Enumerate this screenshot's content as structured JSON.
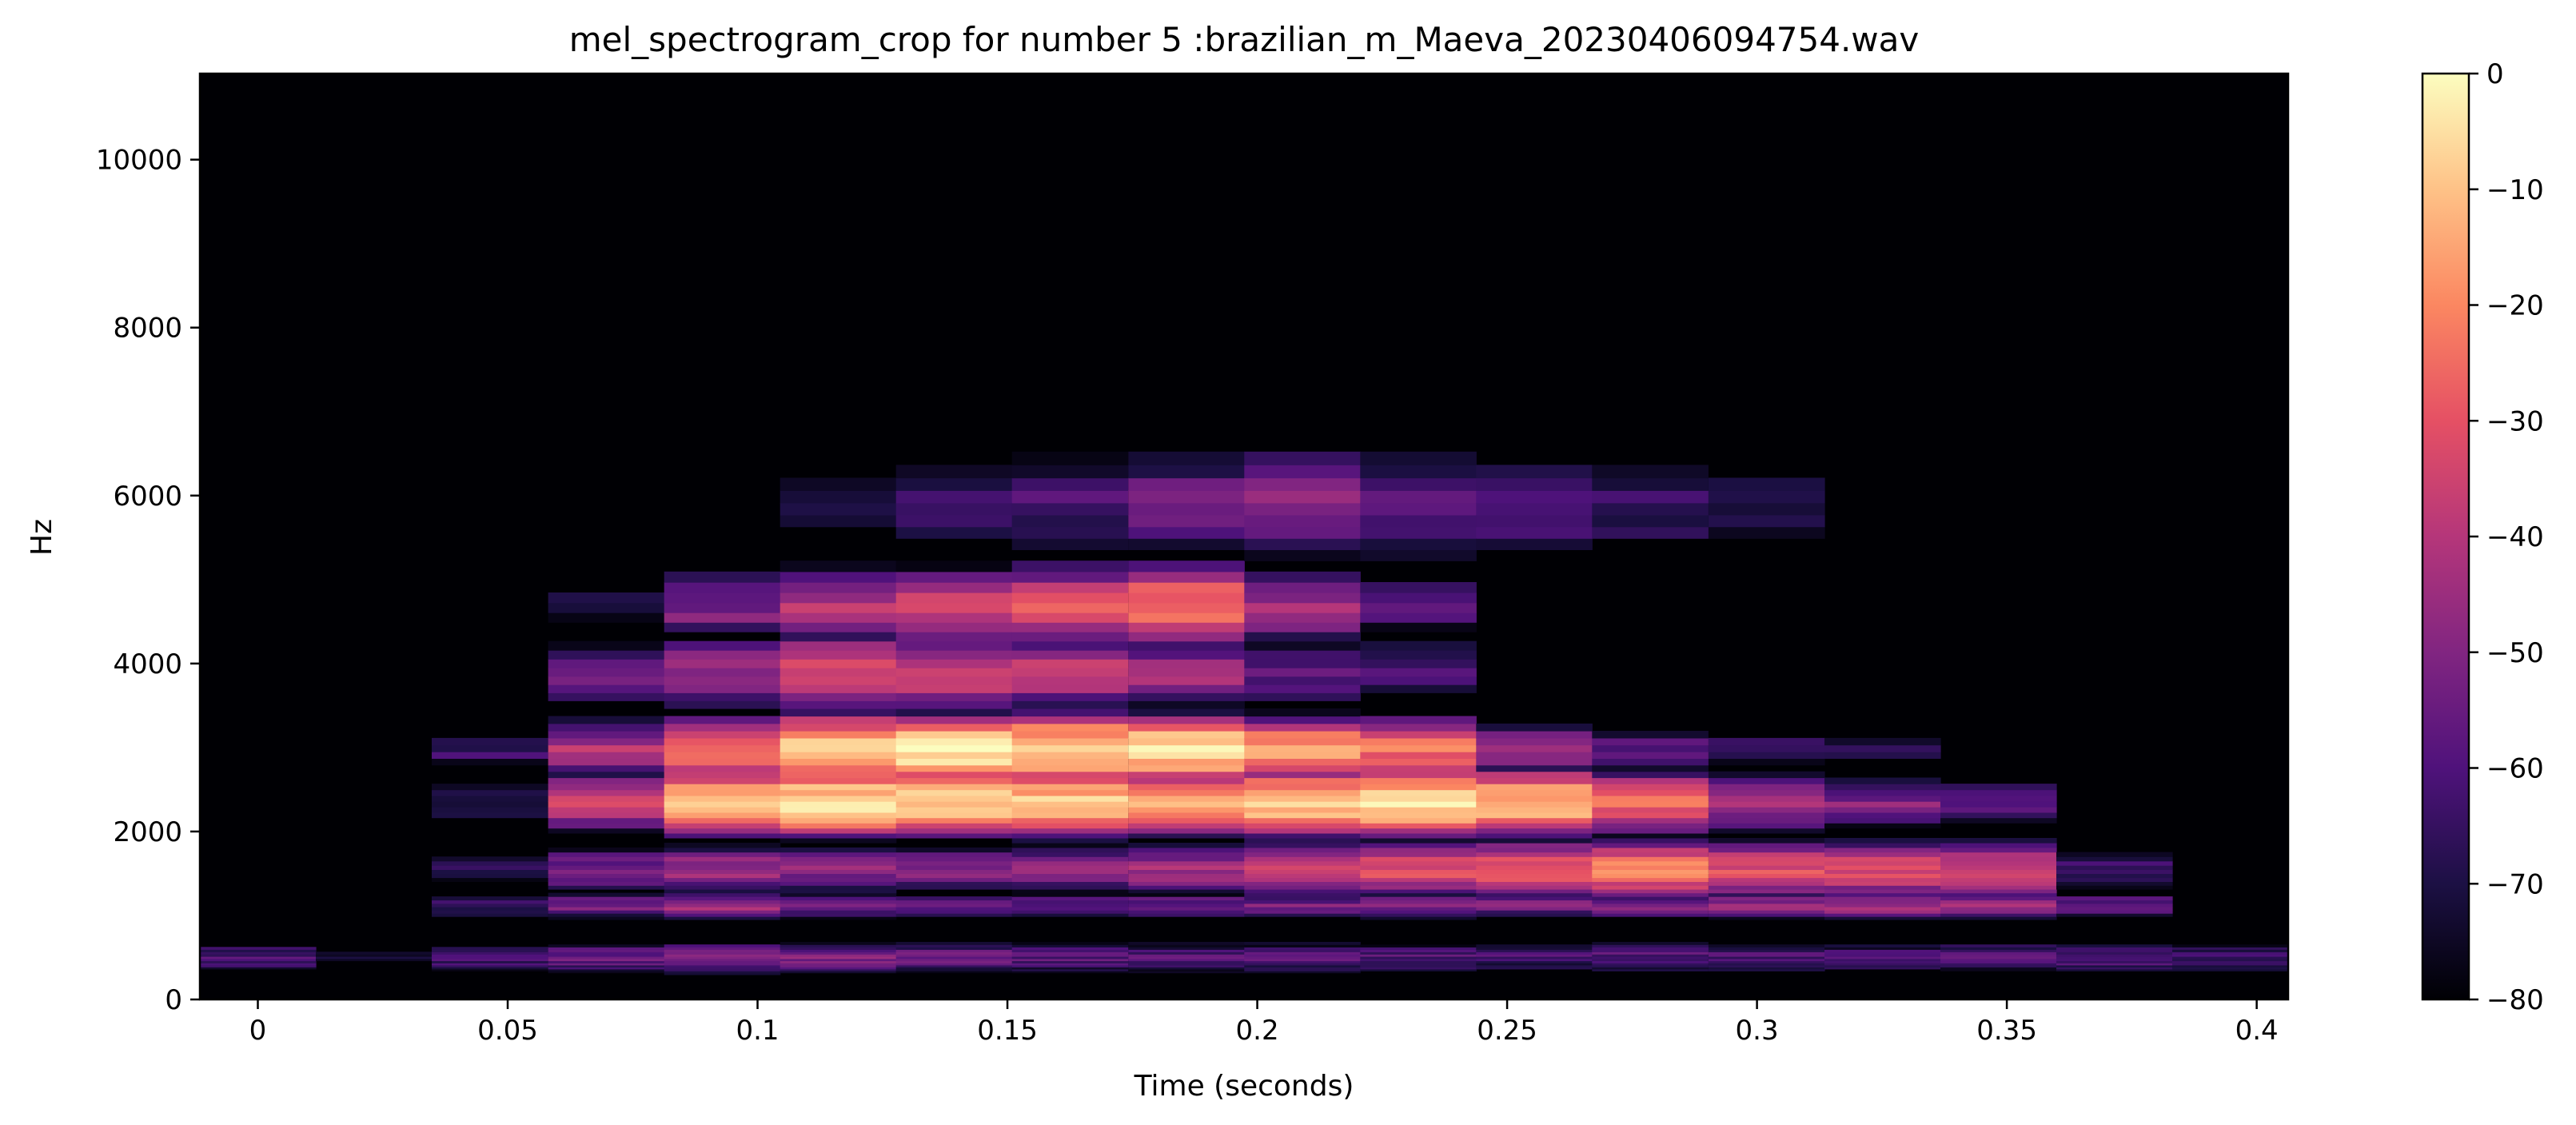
{
  "chart_data": {
    "type": "heatmap",
    "title": "mel_spectrogram_crop for number 5 :brazilian_m_Maeva_20230406094754.wav",
    "xlabel": "Time (seconds)",
    "ylabel": "Hz",
    "xlim": [
      -0.0116,
      0.4063
    ],
    "ylim": [
      0,
      11025
    ],
    "x_ticks": [
      0,
      0.05,
      0.1,
      0.15,
      0.2,
      0.25,
      0.3,
      0.35,
      0.4
    ],
    "y_ticks": [
      0,
      2000,
      4000,
      6000,
      8000,
      10000
    ],
    "frame_times": [
      0,
      0.0232,
      0.0464,
      0.0697,
      0.0929,
      0.1161,
      0.1393,
      0.1625,
      0.1858,
      0.209,
      0.2322,
      0.2554,
      0.2786,
      0.3019,
      0.3251,
      0.3483,
      0.3715,
      0.3947
    ],
    "colorbar": {
      "colormap": "magma",
      "range_db": [
        -80,
        0
      ],
      "ticks": [
        0,
        -10,
        -20,
        -30,
        -40,
        -50,
        -60,
        -70,
        -80
      ],
      "tick_labels": [
        "0",
        "−10",
        "−20",
        "−30",
        "−40",
        "−50",
        "−60",
        "−70",
        "−80"
      ]
    },
    "energy_bands_db": [
      {
        "label": "fundamental ~500 Hz",
        "values": [
          -60,
          -75,
          -62,
          -55,
          -52,
          -50,
          -55,
          -58,
          -58,
          -58,
          -60,
          -62,
          -58,
          -60,
          -60,
          -58,
          -58,
          -62
        ]
      },
      {
        "label": "~1100 Hz",
        "values": [
          -78,
          -80,
          -62,
          -50,
          -45,
          -50,
          -52,
          -55,
          -52,
          -52,
          -50,
          -52,
          -50,
          -45,
          -42,
          -42,
          -55,
          -78
        ]
      },
      {
        "label": "~1300-1800 Hz",
        "values": [
          -80,
          -80,
          -70,
          -52,
          -45,
          -48,
          -50,
          -48,
          -45,
          -35,
          -32,
          -25,
          -22,
          -30,
          -30,
          -32,
          -62,
          -80
        ]
      },
      {
        "label": "formant ~2300 Hz",
        "values": [
          -80,
          -80,
          -65,
          -35,
          -10,
          -5,
          -8,
          -10,
          -12,
          -8,
          -5,
          -10,
          -25,
          -40,
          -50,
          -60,
          -80,
          -80
        ]
      },
      {
        "label": "formant ~3000 Hz",
        "values": [
          -80,
          -80,
          -65,
          -40,
          -20,
          -5,
          -3,
          -5,
          -5,
          -15,
          -25,
          -45,
          -60,
          -65,
          -70,
          -80,
          -80,
          -80
        ]
      },
      {
        "label": "~3600-4200 Hz",
        "values": [
          -80,
          -80,
          -80,
          -55,
          -45,
          -30,
          -35,
          -40,
          -45,
          -55,
          -60,
          -80,
          -80,
          -80,
          -80,
          -80,
          -80,
          -80
        ]
      },
      {
        "label": "~4400-5000 Hz",
        "values": [
          -80,
          -80,
          -80,
          -72,
          -50,
          -40,
          -35,
          -30,
          -25,
          -45,
          -60,
          -80,
          -80,
          -80,
          -80,
          -80,
          -80,
          -80
        ]
      },
      {
        "label": "~5300-6500 Hz",
        "values": [
          -80,
          -80,
          -80,
          -80,
          -80,
          -72,
          -68,
          -60,
          -55,
          -50,
          -55,
          -58,
          -65,
          -70,
          -80,
          -80,
          -80,
          -80
        ]
      }
    ]
  }
}
